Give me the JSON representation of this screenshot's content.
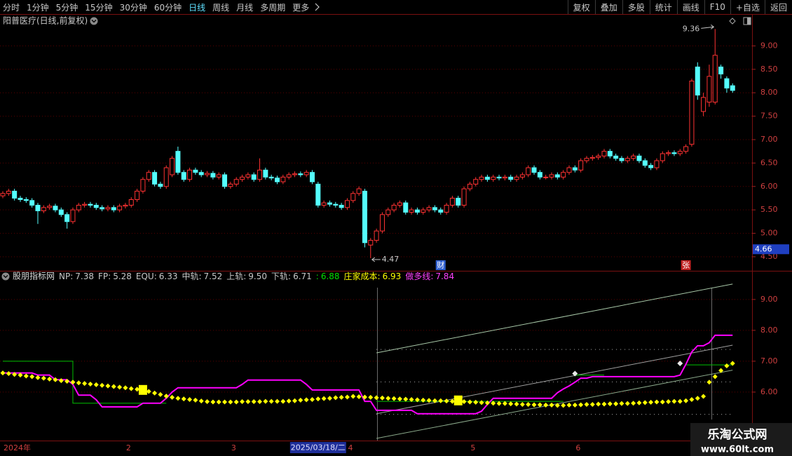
{
  "toolbar": {
    "periods": [
      "分时",
      "1分钟",
      "5分钟",
      "15分钟",
      "30分钟",
      "60分钟",
      "日线",
      "周线",
      "月线",
      "多周期",
      "更多"
    ],
    "active_period": 6,
    "actions": [
      "复权",
      "叠加",
      "多股",
      "统计",
      "画线",
      "F10",
      "+自选",
      "返回"
    ]
  },
  "chart_data": [
    {
      "type": "candlestick",
      "title": "阳普医疗(日线,前复权)",
      "up_color": "#ff3232",
      "down_color": "#54ffff",
      "open": [
        5.8,
        5.85,
        5.9,
        5.75,
        5.72,
        5.7,
        5.6,
        5.48,
        5.55,
        5.58,
        5.5,
        5.4,
        5.25,
        5.5,
        5.6,
        5.62,
        5.6,
        5.55,
        5.52,
        5.55,
        5.5,
        5.58,
        5.6,
        5.72,
        5.9,
        6.15,
        6.3,
        6.05,
        6.0,
        6.25,
        6.75,
        6.3,
        6.15,
        6.35,
        6.3,
        6.25,
        6.28,
        6.2,
        6.25,
        6.0,
        6.05,
        6.15,
        6.2,
        6.25,
        6.15,
        6.35,
        6.2,
        6.18,
        6.1,
        6.2,
        6.25,
        6.27,
        6.25,
        6.3,
        6.05,
        5.6,
        5.65,
        5.62,
        5.6,
        5.55,
        5.7,
        5.85,
        5.9,
        4.75,
        4.85,
        5.05,
        5.4,
        5.5,
        5.6,
        5.65,
        5.45,
        5.5,
        5.45,
        5.5,
        5.55,
        5.5,
        5.45,
        5.6,
        5.75,
        5.6,
        5.95,
        6.05,
        6.15,
        6.2,
        6.15,
        6.2,
        6.18,
        6.2,
        6.15,
        6.2,
        6.25,
        6.4,
        6.3,
        6.2,
        6.2,
        6.25,
        6.2,
        6.3,
        6.4,
        6.35,
        6.55,
        6.6,
        6.62,
        6.65,
        6.75,
        6.65,
        6.6,
        6.55,
        6.6,
        6.65,
        6.55,
        6.45,
        6.4,
        6.55,
        6.7,
        6.72,
        6.7,
        6.75,
        6.9,
        8.55,
        7.6,
        7.8,
        7.8,
        8.55,
        8.3,
        8.15
      ],
      "high": [
        5.9,
        5.95,
        5.95,
        5.8,
        5.77,
        5.75,
        5.65,
        5.6,
        5.63,
        5.63,
        5.55,
        5.45,
        5.55,
        5.65,
        5.67,
        5.67,
        5.65,
        5.6,
        5.6,
        5.6,
        5.63,
        5.65,
        5.77,
        5.95,
        6.2,
        6.35,
        6.35,
        6.1,
        6.45,
        6.65,
        6.85,
        6.35,
        6.4,
        6.4,
        6.35,
        6.33,
        6.33,
        6.3,
        6.3,
        6.1,
        6.2,
        6.25,
        6.3,
        6.3,
        6.6,
        6.4,
        6.25,
        6.23,
        6.25,
        6.3,
        6.32,
        6.32,
        6.35,
        6.35,
        6.1,
        5.7,
        5.7,
        5.67,
        5.65,
        5.75,
        5.9,
        6.0,
        5.95,
        4.9,
        5.1,
        5.45,
        5.55,
        5.65,
        5.7,
        5.7,
        5.55,
        5.55,
        5.55,
        5.6,
        5.6,
        5.55,
        5.65,
        5.8,
        5.8,
        6.0,
        6.1,
        6.2,
        6.25,
        6.25,
        6.25,
        6.25,
        6.25,
        6.25,
        6.25,
        6.3,
        6.45,
        6.45,
        6.35,
        6.25,
        6.3,
        6.3,
        6.35,
        6.45,
        6.45,
        6.6,
        6.65,
        6.67,
        6.7,
        6.8,
        6.8,
        6.7,
        6.65,
        6.65,
        6.7,
        6.7,
        6.6,
        6.5,
        6.6,
        6.75,
        6.77,
        6.77,
        6.8,
        6.9,
        8.3,
        8.65,
        8.0,
        8.6,
        9.36,
        8.6,
        8.35,
        8.2
      ],
      "low": [
        5.75,
        5.8,
        5.7,
        5.67,
        5.65,
        5.55,
        5.2,
        5.43,
        5.5,
        5.45,
        5.35,
        5.1,
        5.2,
        5.45,
        5.55,
        5.55,
        5.5,
        5.47,
        5.47,
        5.45,
        5.45,
        5.53,
        5.55,
        5.67,
        5.85,
        6.1,
        6.0,
        5.95,
        5.95,
        6.2,
        6.25,
        6.1,
        6.1,
        6.25,
        6.2,
        6.2,
        6.15,
        6.15,
        5.95,
        5.95,
        6.0,
        6.1,
        6.15,
        6.1,
        6.1,
        6.15,
        6.13,
        6.05,
        6.05,
        6.15,
        6.2,
        6.2,
        6.2,
        6.05,
        5.55,
        5.55,
        5.57,
        5.55,
        5.5,
        5.5,
        5.65,
        5.8,
        4.7,
        4.47,
        4.8,
        5.0,
        5.35,
        5.45,
        5.55,
        5.4,
        5.4,
        5.4,
        5.4,
        5.45,
        5.45,
        5.4,
        5.4,
        5.55,
        5.55,
        5.55,
        5.9,
        6.0,
        6.1,
        6.1,
        6.1,
        6.13,
        6.13,
        6.1,
        6.1,
        6.15,
        6.2,
        6.25,
        6.15,
        6.15,
        6.15,
        6.15,
        6.15,
        6.25,
        6.3,
        6.3,
        6.5,
        6.55,
        6.57,
        6.6,
        6.6,
        6.55,
        6.5,
        6.5,
        6.55,
        6.5,
        6.4,
        6.35,
        6.35,
        6.5,
        6.65,
        6.65,
        6.65,
        6.7,
        6.85,
        7.85,
        7.5,
        7.7,
        7.75,
        8.3,
        8.0,
        8.0
      ],
      "close": [
        5.85,
        5.9,
        5.75,
        5.72,
        5.7,
        5.6,
        5.48,
        5.55,
        5.58,
        5.5,
        5.4,
        5.25,
        5.5,
        5.6,
        5.62,
        5.6,
        5.55,
        5.52,
        5.55,
        5.5,
        5.58,
        5.6,
        5.72,
        5.9,
        6.15,
        6.3,
        6.05,
        6.0,
        6.4,
        6.6,
        6.3,
        6.15,
        6.35,
        6.3,
        6.25,
        6.28,
        6.2,
        6.25,
        6.0,
        6.05,
        6.15,
        6.2,
        6.25,
        6.15,
        6.35,
        6.2,
        6.18,
        6.1,
        6.2,
        6.25,
        6.27,
        6.25,
        6.3,
        6.1,
        5.6,
        5.65,
        5.62,
        5.6,
        5.55,
        5.7,
        5.85,
        5.95,
        4.8,
        4.85,
        5.05,
        5.4,
        5.5,
        5.6,
        5.65,
        5.45,
        5.5,
        5.45,
        5.5,
        5.55,
        5.5,
        5.45,
        5.6,
        5.75,
        5.6,
        5.95,
        6.05,
        6.15,
        6.2,
        6.15,
        6.2,
        6.18,
        6.2,
        6.15,
        6.2,
        6.25,
        6.4,
        6.3,
        6.2,
        6.2,
        6.25,
        6.2,
        6.3,
        6.4,
        6.35,
        6.55,
        6.6,
        6.62,
        6.65,
        6.75,
        6.65,
        6.6,
        6.55,
        6.6,
        6.65,
        6.55,
        6.45,
        6.4,
        6.55,
        6.7,
        6.72,
        6.7,
        6.75,
        6.85,
        8.25,
        7.95,
        7.9,
        8.35,
        8.8,
        8.4,
        8.1,
        8.05
      ],
      "ylim": [
        4.2,
        9.68
      ],
      "yticks": [
        {
          "value": 4.5,
          "label": "4.50"
        },
        {
          "value": 5,
          "label": "5.00"
        },
        {
          "value": 5.5,
          "label": "5.50"
        },
        {
          "value": 6,
          "label": "6.00"
        },
        {
          "value": 6.5,
          "label": "6.50"
        },
        {
          "value": 7,
          "label": "7.00"
        },
        {
          "value": 7.5,
          "label": "7.50"
        },
        {
          "value": 8,
          "label": "8.00"
        },
        {
          "value": 8.5,
          "label": "8.50"
        },
        {
          "value": 9,
          "label": "9.00"
        }
      ],
      "grid": true,
      "cursor_price": 4.66,
      "events": [
        {
          "index": 75,
          "text": "财",
          "color": "#2f5fd0"
        },
        {
          "index": 117,
          "text": "张",
          "color": "#c02020"
        }
      ]
    },
    {
      "type": "line",
      "title": "股朋指标网",
      "legend": [
        {
          "label": "NP:",
          "value": "7.38",
          "color": "#c8c8c8"
        },
        {
          "label": "FP:",
          "value": "5.28",
          "color": "#c8c8c8"
        },
        {
          "label": "EQU:",
          "value": "6.33",
          "color": "#c8c8c8"
        },
        {
          "label": "中轨:",
          "value": "7.52",
          "color": "#c8c8c8"
        },
        {
          "label": "上轨:",
          "value": "9.50",
          "color": "#c8c8c8"
        },
        {
          "label": "下轨:",
          "value": "6.71",
          "color": "#c8c8c8"
        },
        {
          "label": ":",
          "value": "6.88",
          "color": "#00e000"
        },
        {
          "label": "庄家成本:",
          "value": "6.93",
          "color": "#ffff00"
        },
        {
          "label": "做多线:",
          "value": "7.84",
          "color": "#ff40ff"
        }
      ],
      "categories": [
        "2024年",
        null,
        null,
        null,
        null,
        null,
        null,
        null,
        null,
        null,
        null,
        null,
        null,
        null,
        null,
        null,
        null,
        null,
        null,
        null,
        null,
        "2",
        null,
        null,
        null,
        null,
        null,
        null,
        null,
        null,
        null,
        null,
        null,
        null,
        null,
        null,
        null,
        null,
        null,
        "3",
        null,
        null,
        null,
        null,
        null,
        null,
        null,
        null,
        null,
        null,
        null,
        null,
        null,
        null,
        null,
        null,
        null,
        null,
        null,
        "4",
        null,
        null,
        null,
        null,
        null,
        null,
        null,
        null,
        null,
        null,
        null,
        null,
        null,
        null,
        null,
        null,
        null,
        null,
        null,
        null,
        "5",
        null,
        null,
        null,
        null,
        null,
        null,
        null,
        null,
        null,
        null,
        null,
        null,
        null,
        null,
        null,
        null,
        null,
        "6",
        null,
        null,
        null,
        null,
        null,
        null,
        null,
        null,
        null,
        null,
        null,
        null,
        null,
        null,
        null,
        null,
        null,
        null,
        null,
        null,
        null,
        null,
        null,
        null,
        null,
        null,
        null
      ],
      "cursor": {
        "index": 54,
        "label": "2025/03/18/二"
      },
      "ylim": [
        4.43,
        9.61
      ],
      "yticks": [
        {
          "value": 6,
          "label": "6.00"
        },
        {
          "value": 7,
          "label": "7.00"
        },
        {
          "value": 8,
          "label": "8.00"
        },
        {
          "value": 9,
          "label": "9.00"
        }
      ],
      "grid": true,
      "series": [
        {
          "style": "line",
          "color": "#a8c8a8",
          "x": [
            64,
            125
          ],
          "values": [
            7.27,
            9.5
          ]
        },
        {
          "style": "line",
          "color": "#a0a0a0",
          "x": [
            64,
            125
          ],
          "values": [
            5.3,
            7.52
          ]
        },
        {
          "style": "line",
          "color": "#8aa88a",
          "x": [
            64,
            125
          ],
          "values": [
            4.5,
            6.71
          ]
        },
        {
          "style": "dotted",
          "color": "#b0b0b0",
          "x": [
            64,
            125
          ],
          "values": [
            7.38,
            7.38
          ]
        },
        {
          "style": "dotted",
          "color": "#b0b0b0",
          "x": [
            64,
            125
          ],
          "values": [
            6.33,
            6.33
          ]
        },
        {
          "style": "dotted",
          "color": "#b0b0b0",
          "x": [
            64,
            125
          ],
          "values": [
            5.28,
            5.28
          ]
        },
        {
          "style": "line",
          "color": "#00c000",
          "x": [
            0,
            12,
            12,
            28
          ],
          "values": [
            7.0,
            7.0,
            5.64,
            5.64
          ]
        },
        {
          "style": "line",
          "color": "#00c000",
          "x": [
            64,
            96
          ],
          "values": [
            5.7,
            5.7
          ]
        },
        {
          "style": "line",
          "color": "#00c000",
          "x": [
            98,
            103
          ],
          "values": [
            6.55,
            6.55
          ]
        },
        {
          "style": "line",
          "color": "#00c000",
          "x": [
            117,
            125
          ],
          "values": [
            6.88,
            6.88
          ]
        },
        {
          "style": "line",
          "color": "#ff00ff",
          "values": [
            6.62,
            6.62,
            6.62,
            6.62,
            6.62,
            6.62,
            6.55,
            6.55,
            6.55,
            6.4,
            6.4,
            6.4,
            6.25,
            5.9,
            5.9,
            5.9,
            5.75,
            5.52,
            5.52,
            5.52,
            5.52,
            5.52,
            5.52,
            5.52,
            5.64,
            5.64,
            5.64,
            5.64,
            5.8,
            6.0,
            6.14,
            6.14,
            6.14,
            6.14,
            6.14,
            6.14,
            6.14,
            6.14,
            6.14,
            6.14,
            6.14,
            6.25,
            6.39,
            6.39,
            6.39,
            6.39,
            6.39,
            6.39,
            6.39,
            6.39,
            6.39,
            6.39,
            6.25,
            6.07,
            6.07,
            6.07,
            6.07,
            6.07,
            6.07,
            6.07,
            6.07,
            6.07,
            5.7,
            5.7,
            5.41,
            5.41,
            5.41,
            5.41,
            5.41,
            5.41,
            5.41,
            5.3,
            5.3,
            5.3,
            5.3,
            5.3,
            5.3,
            5.3,
            5.3,
            5.3,
            5.3,
            5.3,
            5.38,
            5.6,
            5.8,
            5.8,
            5.8,
            5.8,
            5.8,
            5.8,
            5.8,
            5.8,
            5.8,
            5.8,
            5.8,
            5.98,
            6.1,
            6.2,
            6.32,
            6.45,
            6.45,
            6.5,
            6.5,
            6.5,
            6.5,
            6.5,
            6.5,
            6.5,
            6.5,
            6.5,
            6.5,
            6.5,
            6.5,
            6.5,
            6.5,
            6.5,
            6.55,
            6.9,
            7.3,
            7.5,
            7.5,
            7.6,
            7.84,
            7.84,
            7.84,
            7.84
          ]
        },
        {
          "style": "dots",
          "color": "#ffff00",
          "values": [
            6.62,
            6.6,
            6.57,
            6.55,
            6.52,
            6.5,
            6.47,
            6.45,
            6.42,
            6.4,
            6.37,
            6.35,
            6.32,
            6.3,
            6.28,
            6.26,
            6.24,
            6.22,
            6.2,
            6.18,
            6.16,
            6.14,
            6.11,
            6.09,
            6.07,
            6.02,
            5.97,
            5.92,
            5.87,
            5.83,
            5.8,
            5.78,
            5.76,
            5.74,
            5.71,
            5.69,
            5.68,
            5.68,
            5.68,
            5.68,
            5.68,
            5.69,
            5.69,
            5.69,
            5.69,
            5.7,
            5.7,
            5.7,
            5.7,
            5.71,
            5.72,
            5.74,
            5.75,
            5.76,
            5.78,
            5.79,
            5.8,
            5.82,
            5.83,
            5.84,
            5.86,
            5.85,
            5.84,
            5.83,
            5.82,
            5.81,
            5.8,
            5.79,
            5.78,
            5.77,
            5.76,
            5.75,
            5.74,
            5.73,
            5.72,
            5.72,
            5.71,
            5.7,
            5.7,
            5.69,
            5.68,
            5.67,
            5.66,
            5.65,
            5.64,
            5.63,
            5.63,
            5.62,
            5.61,
            5.6,
            5.6,
            5.59,
            5.59,
            5.58,
            5.58,
            5.57,
            5.57,
            5.58,
            5.58,
            5.59,
            5.6,
            5.6,
            5.61,
            5.61,
            5.62,
            5.62,
            5.63,
            5.63,
            5.64,
            5.65,
            5.66,
            5.67,
            5.68,
            5.68,
            5.69,
            5.7,
            5.7,
            5.72,
            5.76,
            5.8,
            5.86,
            6.32,
            6.5,
            6.7,
            6.85,
            6.93
          ]
        },
        {
          "style": "marker",
          "marker": "square",
          "color": "#ffff00",
          "x": [
            24,
            78
          ],
          "values": [
            6.07,
            5.73
          ]
        },
        {
          "style": "marker",
          "marker": "diamond",
          "color": "#e8e8e8",
          "x": [
            98,
            116
          ],
          "values": [
            6.6,
            6.93
          ]
        }
      ]
    }
  ],
  "watermark": {
    "title": "乐淘公式网",
    "url": "www.60lt.com"
  }
}
